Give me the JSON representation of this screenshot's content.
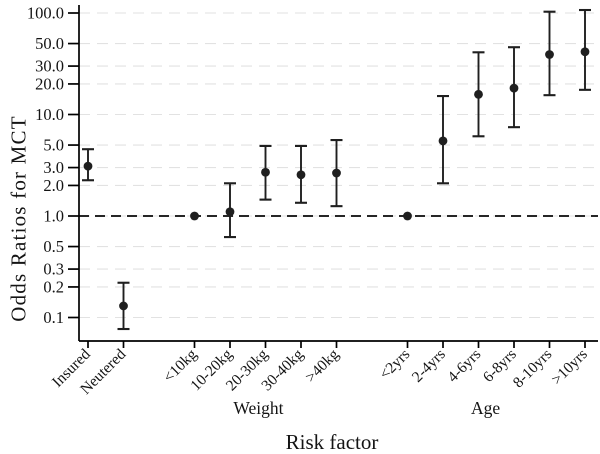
{
  "figure": {
    "y_axis_title": "Odds Ratios for MCT",
    "x_axis_title": "Risk factor"
  },
  "chart_data": {
    "type": "scatter",
    "variant": "forest-plot-odds-ratios-with-95ci-errorbars",
    "title": "",
    "xlabel": "Risk factor",
    "ylabel": "Odds Ratios for MCT",
    "yscale": "log",
    "ylim": [
      0.06,
      120
    ],
    "grid": {
      "horizontal": true,
      "style": "dashed",
      "color": "#e2e2e2"
    },
    "legend": "none",
    "marker_color": "#1f1f1f",
    "axis_color": "#000000",
    "reference_line": {
      "y": 1.0,
      "style": "dashed",
      "color": "#262626"
    },
    "yticks": [
      100.0,
      50.0,
      30.0,
      20.0,
      10.0,
      5.0,
      3.0,
      2.0,
      1.0,
      0.5,
      0.3,
      0.2,
      0.1
    ],
    "ytick_labels": [
      "100.0",
      "50.0",
      "30.0",
      "20.0",
      "10.0",
      "5.0",
      "3.0",
      "2.0",
      "1.0",
      "0.5",
      "0.3",
      "0.2",
      "0.1"
    ],
    "points": [
      {
        "label": "Insured",
        "slot": 0,
        "or": 3.1,
        "ci_low": 2.25,
        "ci_high": 4.55,
        "reference": false
      },
      {
        "label": "Neutered",
        "slot": 1,
        "or": 0.13,
        "ci_low": 0.077,
        "ci_high": 0.22,
        "reference": false
      },
      {
        "label": "<10kg",
        "slot": 3,
        "or": 1.0,
        "ci_low": null,
        "ci_high": null,
        "reference": true
      },
      {
        "label": "10-20kg",
        "slot": 4,
        "or": 1.1,
        "ci_low": 0.62,
        "ci_high": 2.1,
        "reference": false
      },
      {
        "label": "20-30kg",
        "slot": 5,
        "or": 2.7,
        "ci_low": 1.45,
        "ci_high": 4.9,
        "reference": false
      },
      {
        "label": "30-40kg",
        "slot": 6,
        "or": 2.55,
        "ci_low": 1.35,
        "ci_high": 4.9,
        "reference": false
      },
      {
        "label": ">40kg",
        "slot": 7,
        "or": 2.65,
        "ci_low": 1.25,
        "ci_high": 5.6,
        "reference": false
      },
      {
        "label": "<2yrs",
        "slot": 9,
        "or": 1.0,
        "ci_low": null,
        "ci_high": null,
        "reference": true
      },
      {
        "label": "2-4yrs",
        "slot": 10,
        "or": 5.5,
        "ci_low": 2.1,
        "ci_high": 15.2,
        "reference": false
      },
      {
        "label": "4-6yrs",
        "slot": 11,
        "or": 15.8,
        "ci_low": 6.1,
        "ci_high": 41.0,
        "reference": false
      },
      {
        "label": "6-8yrs",
        "slot": 12,
        "or": 18.2,
        "ci_low": 7.5,
        "ci_high": 46.0,
        "reference": false
      },
      {
        "label": "8-10yrs",
        "slot": 13,
        "or": 39.0,
        "ci_low": 15.5,
        "ci_high": 103.0,
        "reference": false
      },
      {
        "label": ">10yrs",
        "slot": 14,
        "or": 41.5,
        "ci_low": 17.5,
        "ci_high": 107.0,
        "reference": false
      }
    ],
    "groups": [
      {
        "label": "Weight",
        "slot_center": 4.8
      },
      {
        "label": "Age",
        "slot_center": 11.2
      }
    ]
  }
}
